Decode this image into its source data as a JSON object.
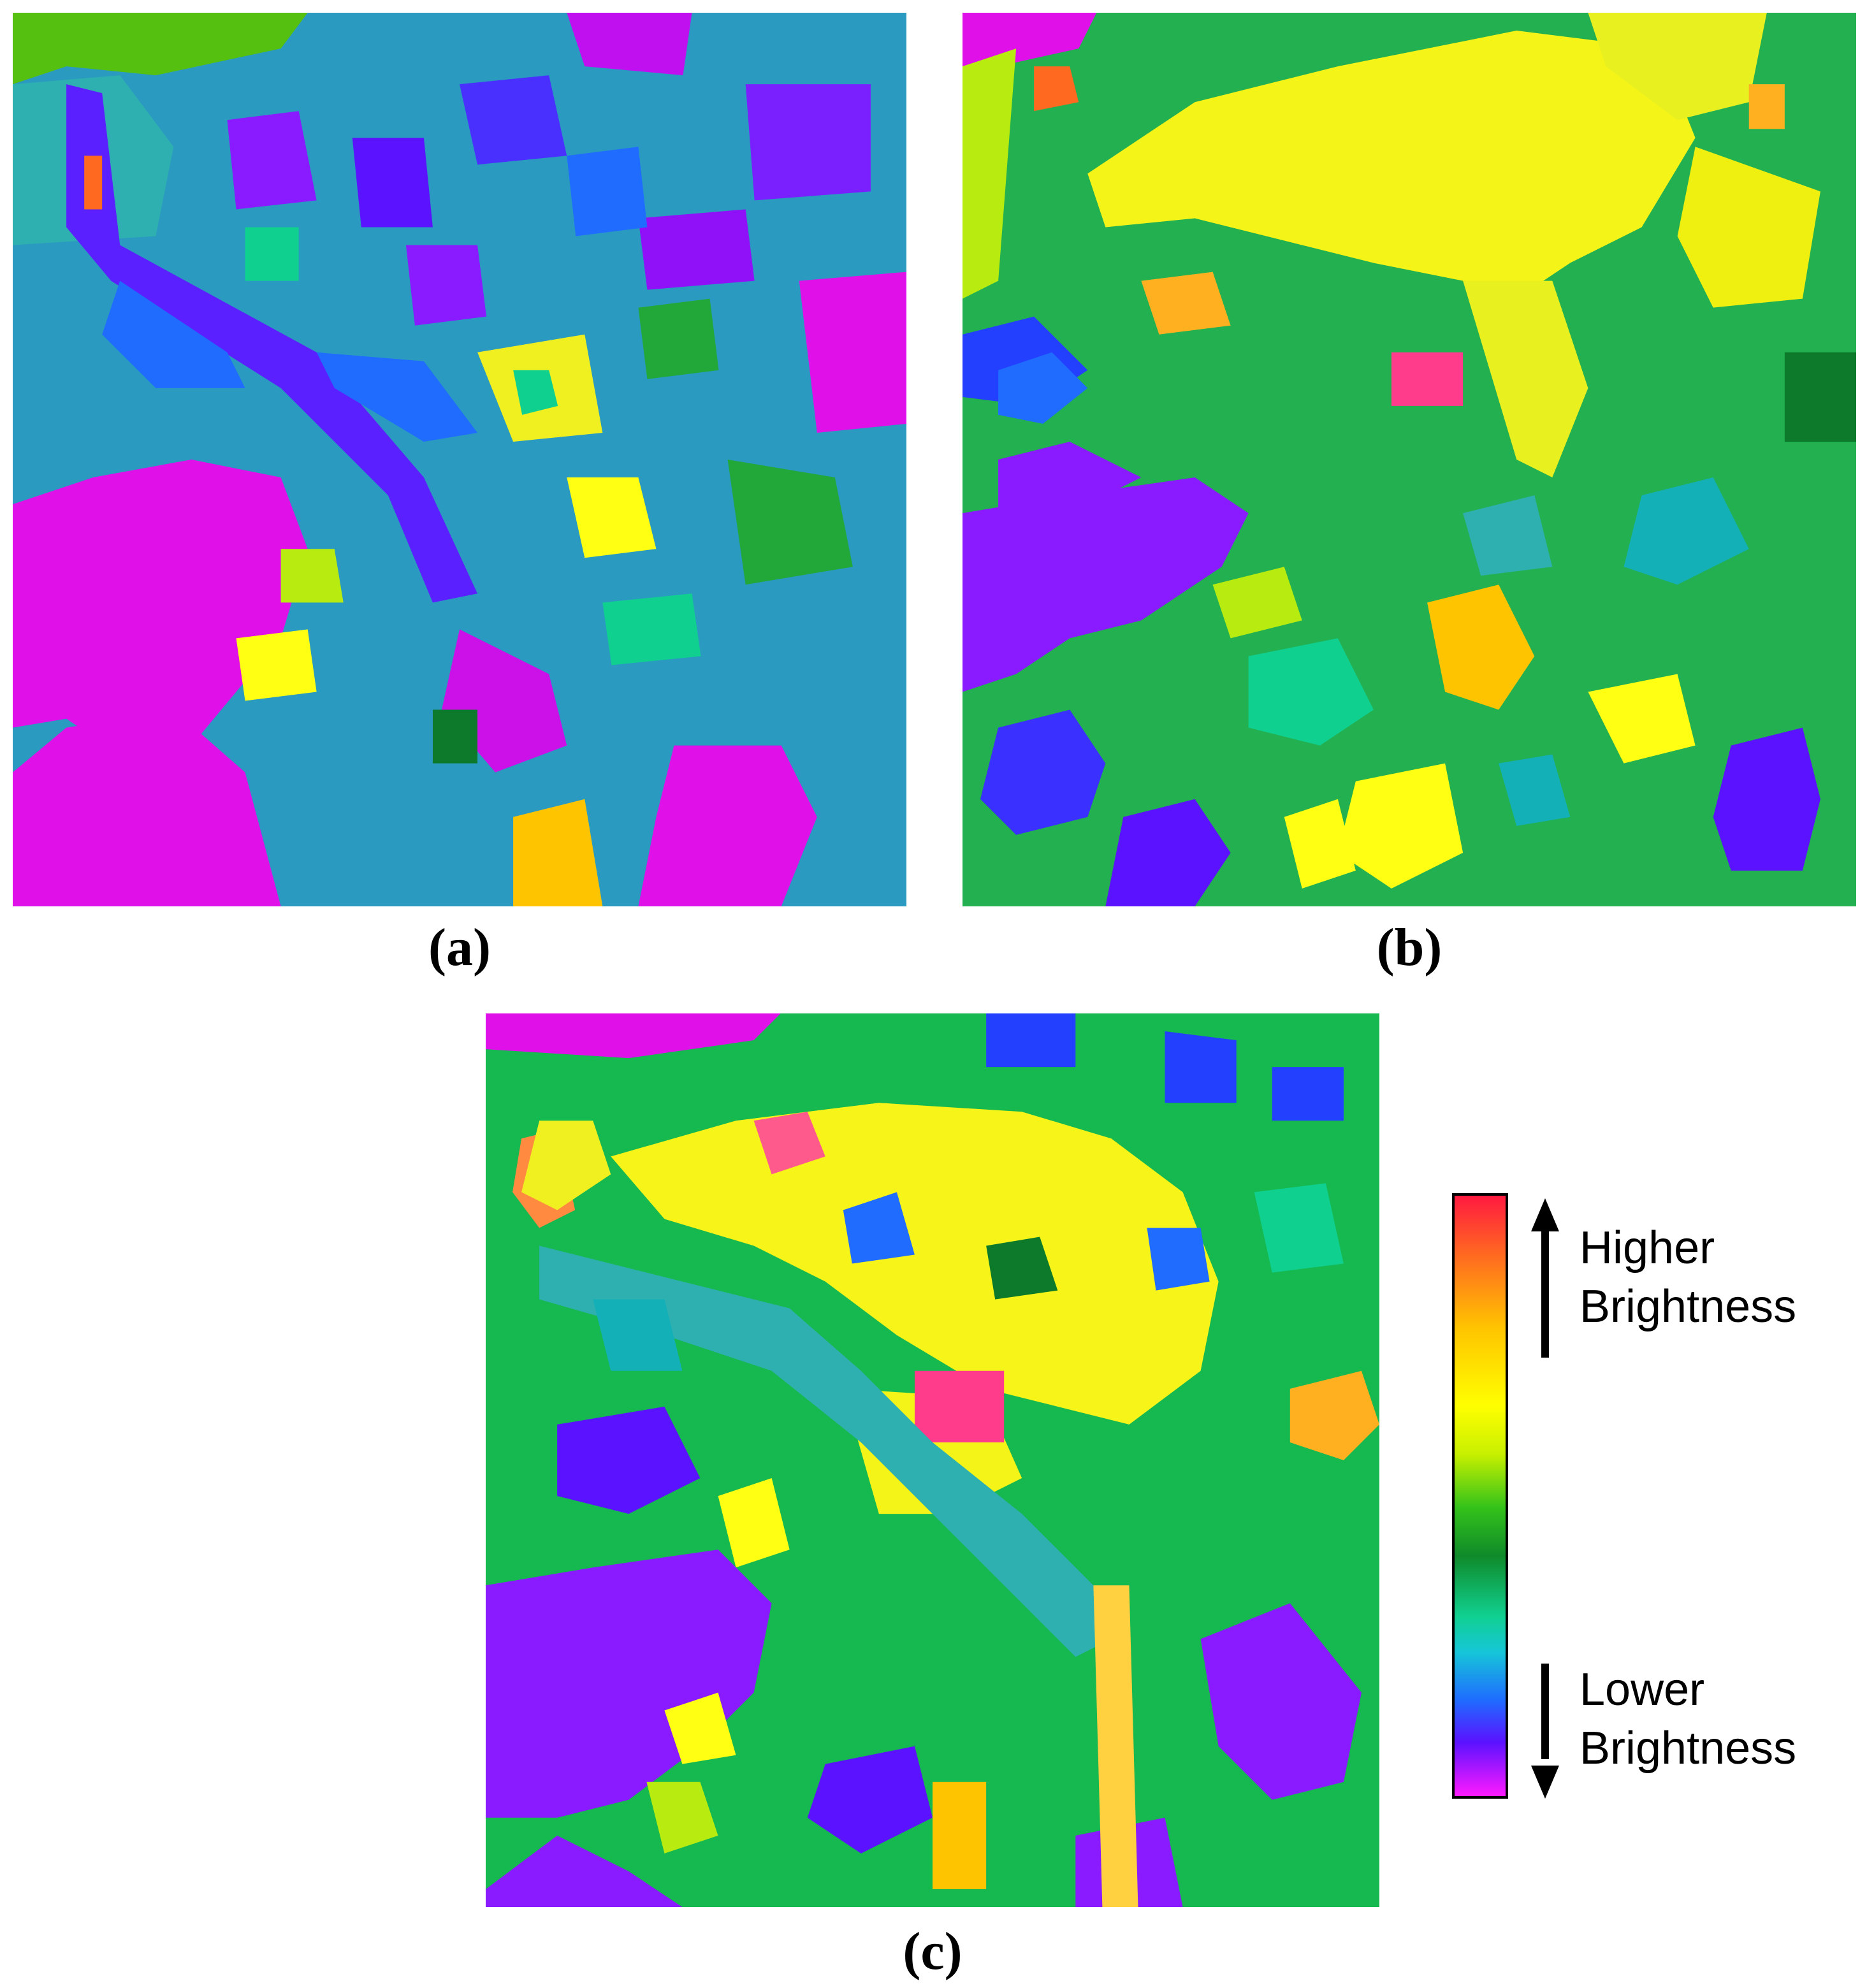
{
  "panels": [
    {
      "id": "a",
      "caption": "(a)"
    },
    {
      "id": "b",
      "caption": "(b)"
    },
    {
      "id": "c",
      "caption": "(c)"
    }
  ],
  "colorbar": {
    "high_line1": "Higher",
    "high_line2": "Brightness",
    "low_line1": "Lower",
    "low_line2": "Brightness",
    "colors_top_to_bottom": [
      "#ff1a40",
      "#ff6a20",
      "#ffc400",
      "#ffff00",
      "#c8f000",
      "#33c21a",
      "#0f8a2a",
      "#10d090",
      "#16c6d8",
      "#1f6cff",
      "#5a12ff",
      "#ff1aff"
    ]
  },
  "map_colors": {
    "magenta": "#e810e8",
    "violet": "#8a1aff",
    "blue": "#2440ff",
    "teal": "#14b0b8",
    "cyan_green": "#10d8a0",
    "green": "#22a838",
    "dark_green": "#0c7a2a",
    "yellow_green": "#b8ec10",
    "yellow": "#ffff14",
    "orange": "#ffb020",
    "pink": "#ff3c8c"
  }
}
